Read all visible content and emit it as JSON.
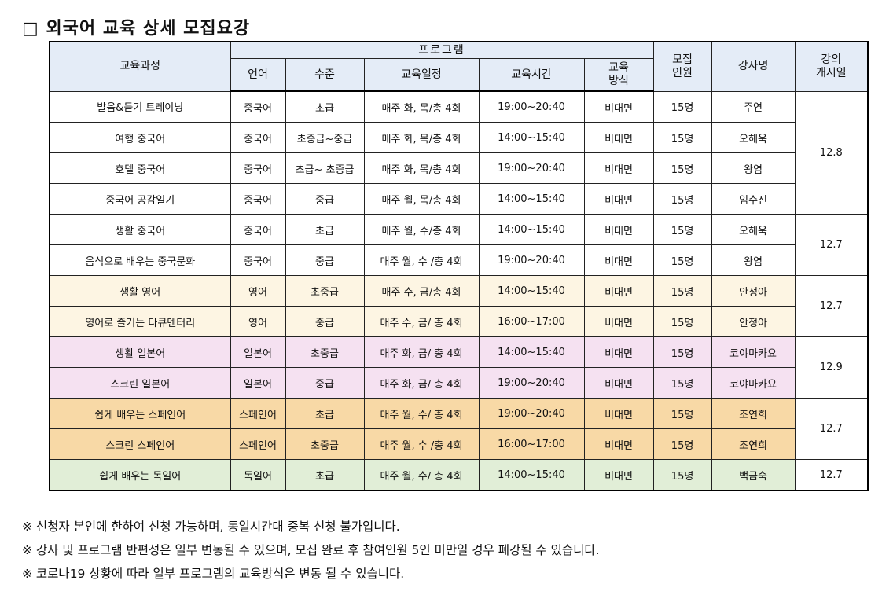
{
  "title": "□ 외국어 교육 상세 모집요강",
  "headers": {
    "course": "교육과정",
    "program": "프로그램",
    "language": "언어",
    "level": "수준",
    "schedule": "교육일정",
    "time": "교육시간",
    "method": "교육\n방식",
    "recruit": "모집\n인원",
    "instructor": "강사명",
    "start": "강의\n개시일"
  },
  "rows": [
    {
      "course": "발음&듣기 트레이닝",
      "language": "중국어",
      "level": "초급",
      "schedule": "매주 화, 목/총 4회",
      "time": "19:00~20:40",
      "method": "비대면",
      "count": "15명",
      "instructor": "주연"
    },
    {
      "course": "여행 중국어",
      "language": "중국어",
      "level": "초중급~중급",
      "schedule": "매주 화, 목/총 4회",
      "time": "14:00~15:40",
      "method": "비대면",
      "count": "15명",
      "instructor": "오해욱"
    },
    {
      "course": "호텔 중국어",
      "language": "중국어",
      "level": "초급~ 초중급",
      "schedule": "매주 화, 목/총 4회",
      "time": "19:00~20:40",
      "method": "비대면",
      "count": "15명",
      "instructor": "왕염"
    },
    {
      "course": "중국어 공감일기",
      "language": "중국어",
      "level": "중급",
      "schedule": "매주 월, 목/총 4회",
      "time": "14:00~15:40",
      "method": "비대면",
      "count": "15명",
      "instructor": "임수진"
    },
    {
      "course": "생활 중국어",
      "language": "중국어",
      "level": "초급",
      "schedule": "매주 월, 수/총 4회",
      "time": "14:00~15:40",
      "method": "비대면",
      "count": "15명",
      "instructor": "오해욱"
    },
    {
      "course": "음식으로 배우는 중국문화",
      "language": "중국어",
      "level": "중급",
      "schedule": "매주 월, 수 /총 4회",
      "time": "19:00~20:40",
      "method": "비대면",
      "count": "15명",
      "instructor": "왕염"
    },
    {
      "course": "생활 영어",
      "language": "영어",
      "level": "초중급",
      "schedule": "매주 수, 금/총 4회",
      "time": "14:00~15:40",
      "method": "비대면",
      "count": "15명",
      "instructor": "안정아"
    },
    {
      "course": "영어로 즐기는 다큐멘터리",
      "language": "영어",
      "level": "중급",
      "schedule": "매주 수, 금/ 총 4회",
      "time": "16:00~17:00",
      "method": "비대면",
      "count": "15명",
      "instructor": "안정아"
    },
    {
      "course": "생활 일본어",
      "language": "일본어",
      "level": "초중급",
      "schedule": "매주 화, 금/ 총 4회",
      "time": "14:00~15:40",
      "method": "비대면",
      "count": "15명",
      "instructor": "코야마카요"
    },
    {
      "course": "스크린 일본어",
      "language": "일본어",
      "level": "중급",
      "schedule": "매주 화, 금/ 총 4회",
      "time": "19:00~20:40",
      "method": "비대면",
      "count": "15명",
      "instructor": "코야마카요"
    },
    {
      "course": "쉽게 배우는 스페인어",
      "language": "스페인어",
      "level": "초급",
      "schedule": "매주 월, 수/ 총 4회",
      "time": "19:00~20:40",
      "method": "비대면",
      "count": "15명",
      "instructor": "조연희"
    },
    {
      "course": "스크린 스페인어",
      "language": "스페인어",
      "level": "초중급",
      "schedule": "매주 월, 수 /총 4회",
      "time": "16:00~17:00",
      "method": "비대면",
      "count": "15명",
      "instructor": "조연희"
    },
    {
      "course": "쉽게 배우는 독일어",
      "language": "독일어",
      "level": "초급",
      "schedule": "매주 월, 수/ 총 4회",
      "time": "14:00~15:40",
      "method": "비대면",
      "count": "15명",
      "instructor": "백금숙"
    }
  ],
  "start_dates": [
    "12.8",
    "12.7",
    "12.7",
    "12.9",
    "12.7",
    "12.7"
  ],
  "notes": [
    "※ 신청자 본인에 한하여 신청 가능하며, 동일시간대 중복 신청 불가입니다.",
    "※ 강사 및 프로그램 반편성은 일부 변동될 수 있으며, 모집 완료 후 참여인원 5인 미만일 경우 폐강될 수 있습니다.",
    "※ 코로나19 상황에 따라 일부 프로그램의 교육방식은 변동 될 수 있습니다."
  ],
  "colors": {
    "header_bg": "#e4ecf7",
    "english_bg": "#fdf5e3",
    "japanese_bg": "#f5e1f1",
    "spanish_bg": "#f8d9a6",
    "german_bg": "#e1eed7"
  }
}
